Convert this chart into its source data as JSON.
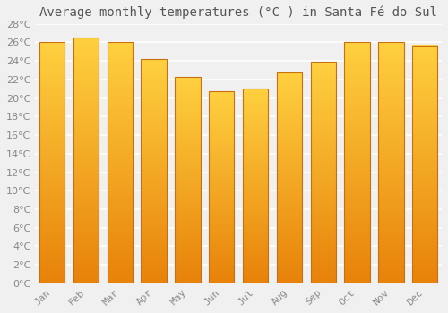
{
  "title": "Average monthly temperatures (°C ) in Santa Fé do Sul",
  "months": [
    "Jan",
    "Feb",
    "Mar",
    "Apr",
    "May",
    "Jun",
    "Jul",
    "Aug",
    "Sep",
    "Oct",
    "Nov",
    "Dec"
  ],
  "temperatures": [
    26.0,
    26.5,
    26.0,
    24.2,
    22.3,
    20.7,
    21.0,
    22.8,
    23.9,
    26.0,
    26.0,
    25.7
  ],
  "bar_color_bottom": "#E8820A",
  "bar_color_top": "#FFD040",
  "bar_edge_color": "#C87010",
  "ylim": [
    0,
    28
  ],
  "ytick_step": 2,
  "background_color": "#f0f0f0",
  "grid_color": "#ffffff",
  "title_fontsize": 10,
  "tick_fontsize": 8,
  "bar_width": 0.75
}
